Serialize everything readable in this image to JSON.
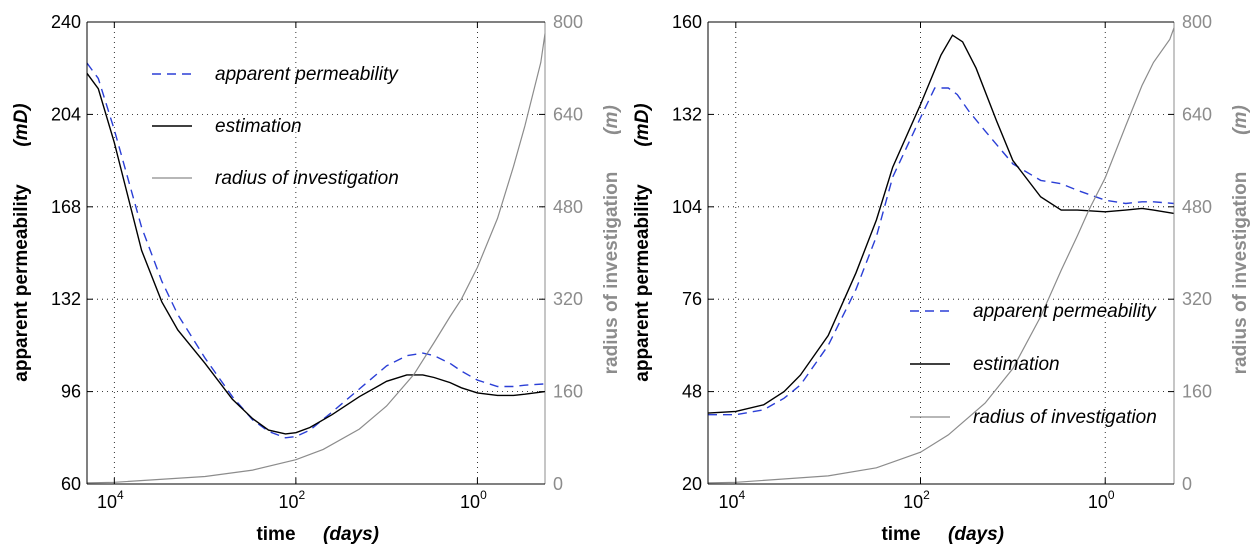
{
  "chart_data": [
    {
      "type": "line",
      "xlabel": "time",
      "xunit": "(days)",
      "x_scale": "log",
      "x_reversed": true,
      "xlim": [
        20000,
        0.18
      ],
      "xticks": [
        {
          "value": 10000,
          "base": "10",
          "exp": "4"
        },
        {
          "value": 100,
          "base": "10",
          "exp": "2"
        },
        {
          "value": 1,
          "base": "10",
          "exp": "0"
        }
      ],
      "ylabel": "apparent permeability",
      "yunit": "(mD)",
      "ylim": [
        60,
        240
      ],
      "yticks": [
        60,
        96,
        132,
        168,
        204,
        240
      ],
      "y2label": "radius of investigation",
      "y2unit": "(m)",
      "y2lim": [
        0,
        800
      ],
      "y2ticks": [
        0,
        160,
        320,
        480,
        640,
        800
      ],
      "grid": true,
      "legend_position": "top",
      "colors": {
        "apparent": "#2b3fd6",
        "estimation": "#000000",
        "radius": "#8c8c8c"
      },
      "series": [
        {
          "name": "apparent permeability",
          "style": "dashed",
          "axis": "left",
          "x": [
            20000,
            15000,
            10000,
            5000,
            3000,
            2000,
            1000,
            500,
            300,
            200,
            130,
            100,
            70,
            40,
            20,
            10,
            6,
            4,
            3,
            2,
            1.5,
            1,
            0.6,
            0.4,
            0.3,
            0.18
          ],
          "y": [
            224,
            218,
            198,
            160,
            139,
            126,
            109,
            94,
            85,
            80.5,
            78,
            78.5,
            81,
            88,
            97,
            106,
            110,
            111,
            110,
            107,
            104,
            100.5,
            98,
            98,
            98.5,
            99
          ]
        },
        {
          "name": "estimation",
          "style": "solid",
          "axis": "left",
          "x": [
            20000,
            15000,
            10000,
            5000,
            3000,
            2000,
            1000,
            500,
            300,
            200,
            130,
            100,
            70,
            40,
            20,
            10,
            6,
            4,
            3,
            2,
            1.5,
            1,
            0.6,
            0.4,
            0.3,
            0.18
          ],
          "y": [
            220,
            214,
            193,
            151,
            131,
            120,
            107,
            93,
            85.5,
            81,
            79.5,
            80,
            82,
            87,
            94,
            100,
            102.5,
            102.5,
            101.5,
            99.5,
            97.5,
            95.5,
            94.5,
            94.5,
            95,
            96
          ]
        },
        {
          "name": "radius of investigation",
          "style": "solid",
          "axis": "right",
          "x": [
            20000,
            10000,
            1000,
            300,
            100,
            50,
            20,
            10,
            5,
            3,
            2,
            1.5,
            1,
            0.6,
            0.4,
            0.3,
            0.2,
            0.18
          ],
          "y": [
            2,
            3,
            13,
            24,
            42,
            60,
            95,
            135,
            190,
            245,
            290,
            320,
            375,
            460,
            550,
            620,
            730,
            780
          ]
        }
      ]
    },
    {
      "type": "line",
      "xlabel": "time",
      "xunit": "(days)",
      "x_scale": "log",
      "x_reversed": true,
      "xlim": [
        20000,
        0.18
      ],
      "xticks": [
        {
          "value": 10000,
          "base": "10",
          "exp": "4"
        },
        {
          "value": 100,
          "base": "10",
          "exp": "2"
        },
        {
          "value": 1,
          "base": "10",
          "exp": "0"
        }
      ],
      "ylabel": "apparent permeability",
      "yunit": "(mD)",
      "ylim": [
        20,
        160
      ],
      "yticks": [
        20,
        48,
        76,
        104,
        132,
        160
      ],
      "y2label": "radius of investigation",
      "y2unit": "(m)",
      "y2lim": [
        0,
        800
      ],
      "y2ticks": [
        0,
        160,
        320,
        480,
        640,
        800
      ],
      "grid": true,
      "legend_position": "bottom-right",
      "colors": {
        "apparent": "#2b3fd6",
        "estimation": "#000000",
        "radius": "#8c8c8c"
      },
      "series": [
        {
          "name": "apparent permeability",
          "style": "dashed",
          "axis": "left",
          "x": [
            20000,
            10000,
            5000,
            3000,
            2000,
            1000,
            500,
            300,
            200,
            100,
            70,
            50,
            40,
            30,
            20,
            10,
            5,
            3,
            2,
            1,
            0.6,
            0.4,
            0.3,
            0.18
          ],
          "y": [
            41,
            41,
            42.5,
            46,
            50,
            62,
            79,
            95,
            113,
            131,
            140,
            140,
            138,
            133,
            127,
            117,
            112,
            111,
            109,
            106,
            105,
            105.5,
            105.5,
            105
          ]
        },
        {
          "name": "estimation",
          "style": "solid",
          "axis": "left",
          "x": [
            20000,
            10000,
            5000,
            3000,
            2000,
            1000,
            500,
            300,
            200,
            100,
            60,
            45,
            35,
            25,
            15,
            10,
            5,
            3,
            2,
            1,
            0.6,
            0.4,
            0.3,
            0.18
          ],
          "y": [
            41.5,
            42,
            44,
            48,
            53,
            65,
            84,
            100,
            116,
            135,
            150,
            156,
            154,
            146,
            130,
            118,
            107,
            103,
            103,
            102.5,
            103,
            103.5,
            103,
            102
          ]
        },
        {
          "name": "radius of investigation",
          "style": "solid",
          "axis": "right",
          "x": [
            20000,
            10000,
            1000,
            300,
            100,
            50,
            20,
            10,
            5,
            3,
            2,
            1.5,
            1,
            0.6,
            0.4,
            0.3,
            0.2,
            0.18
          ],
          "y": [
            2,
            3,
            14,
            28,
            55,
            85,
            140,
            200,
            290,
            370,
            430,
            475,
            530,
            620,
            690,
            730,
            770,
            790
          ]
        }
      ]
    }
  ]
}
